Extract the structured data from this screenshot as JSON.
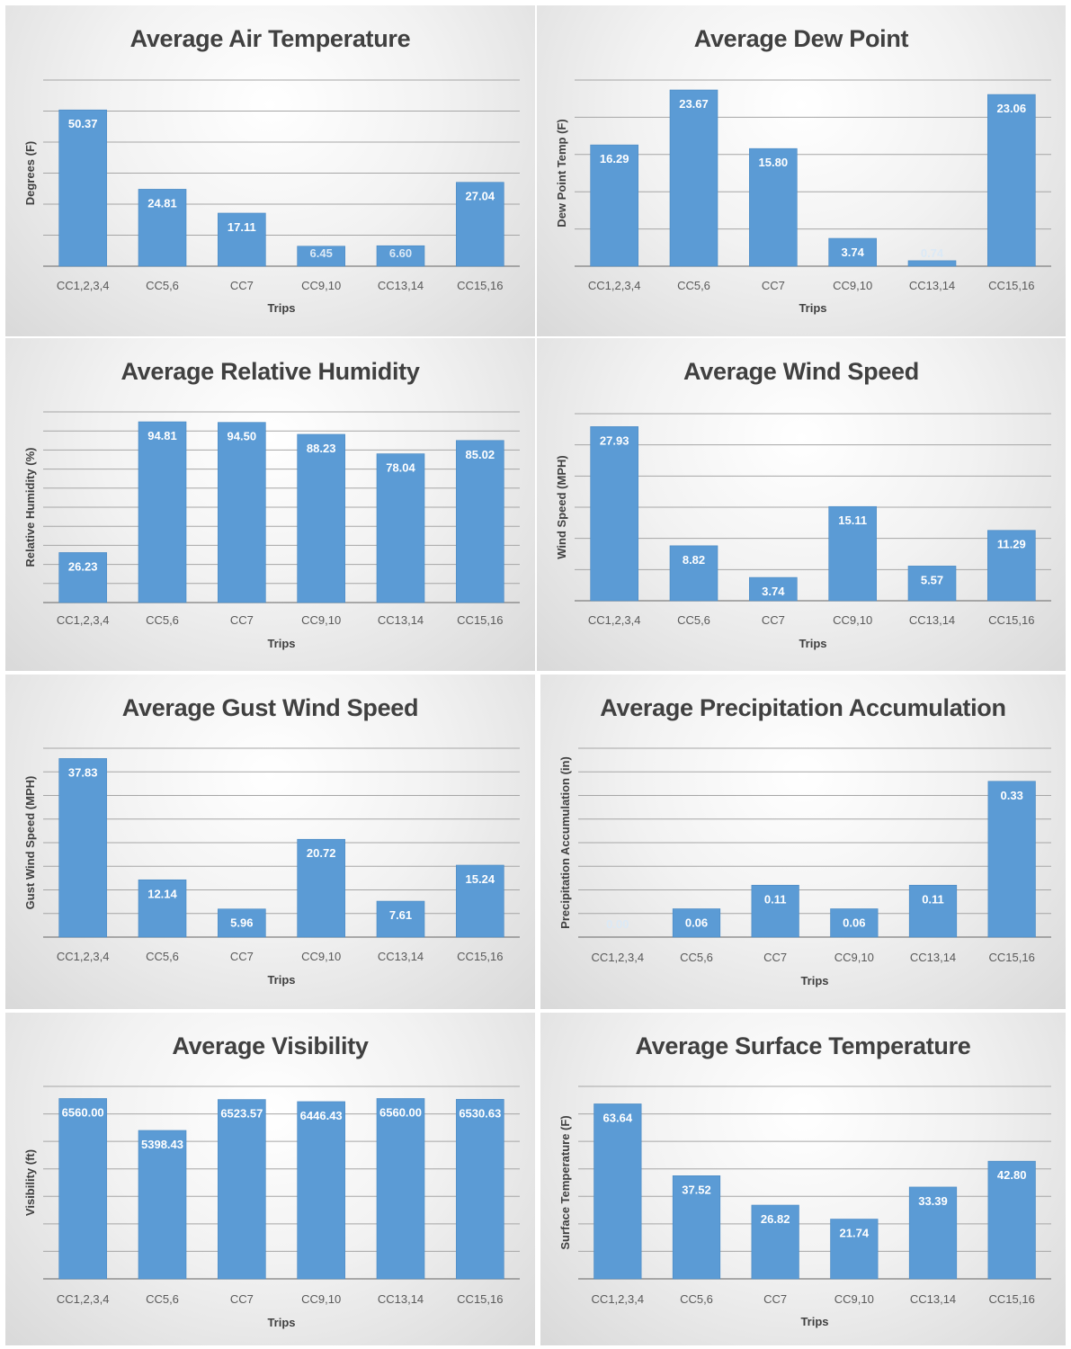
{
  "chart_data": [
    {
      "type": "bar",
      "title": "Average Air Temperature",
      "xlabel": "Trips",
      "ylabel": "Degrees (F)",
      "categories": [
        "CC1,2,3,4",
        "CC5,6",
        "CC7",
        "CC9,10",
        "CC13,14",
        "CC15,16"
      ],
      "values": [
        50.37,
        24.81,
        17.11,
        6.45,
        6.6,
        27.04
      ],
      "data_labels": [
        "50.37",
        "24.81",
        "17.11",
        "6.45",
        "6.60",
        "27.04"
      ],
      "ylim": [
        0,
        60
      ],
      "grid_lines": 6,
      "grid": true
    },
    {
      "type": "bar",
      "title": "Average Dew Point",
      "xlabel": "Trips",
      "ylabel": "Dew Point Temp (F)",
      "categories": [
        "CC1,2,3,4",
        "CC5,6",
        "CC7",
        "CC9,10",
        "CC13,14",
        "CC15,16"
      ],
      "values": [
        16.29,
        23.67,
        15.8,
        3.74,
        0.74,
        23.06
      ],
      "data_labels": [
        "16.29",
        "23.67",
        "15.80",
        "3.74",
        "0.74",
        "23.06"
      ],
      "ylim": [
        0,
        25
      ],
      "grid_lines": 5,
      "grid": true
    },
    {
      "type": "bar",
      "title": "Average Relative Humidity",
      "xlabel": "Trips",
      "ylabel": "Relative Humidity (%)",
      "categories": [
        "CC1,2,3,4",
        "CC5,6",
        "CC7",
        "CC9,10",
        "CC13,14",
        "CC15,16"
      ],
      "values": [
        26.23,
        94.81,
        94.5,
        88.23,
        78.04,
        85.02
      ],
      "data_labels": [
        "26.23",
        "94.81",
        "94.50",
        "88.23",
        "78.04",
        "85.02"
      ],
      "ylim": [
        0,
        100
      ],
      "grid_lines": 10,
      "grid": true
    },
    {
      "type": "bar",
      "title": "Average Wind Speed",
      "xlabel": "Trips",
      "ylabel": "Wind Speed (MPH)",
      "categories": [
        "CC1,2,3,4",
        "CC5,6",
        "CC7",
        "CC9,10",
        "CC13,14",
        "CC15,16"
      ],
      "values": [
        27.93,
        8.82,
        3.74,
        15.11,
        5.57,
        11.29
      ],
      "data_labels": [
        "27.93",
        "8.82",
        "3.74",
        "15.11",
        "5.57",
        "11.29"
      ],
      "ylim": [
        0,
        30
      ],
      "grid_lines": 6,
      "grid": true
    },
    {
      "type": "bar",
      "title": "Average Gust Wind Speed",
      "xlabel": "Trips",
      "ylabel": "Gust Wind Speed (MPH)",
      "categories": [
        "CC1,2,3,4",
        "CC5,6",
        "CC7",
        "CC9,10",
        "CC13,14",
        "CC15,16"
      ],
      "values": [
        37.83,
        12.14,
        5.96,
        20.72,
        7.61,
        15.24
      ],
      "data_labels": [
        "37.83",
        "12.14",
        "5.96",
        "20.72",
        "7.61",
        "15.24"
      ],
      "ylim": [
        0,
        40
      ],
      "grid_lines": 8,
      "grid": true
    },
    {
      "type": "bar",
      "title": "Average Precipitation Accumulation",
      "xlabel": "Trips",
      "ylabel": "Precipitation Accumulation (in)",
      "categories": [
        "CC1,2,3,4",
        "CC5,6",
        "CC7",
        "CC9,10",
        "CC13,14",
        "CC15,16"
      ],
      "values": [
        0.0,
        0.06,
        0.11,
        0.06,
        0.11,
        0.33
      ],
      "data_labels": [
        "0.00",
        "0.06",
        "0.11",
        "0.06",
        "0.11",
        "0.33"
      ],
      "ylim": [
        0,
        0.4
      ],
      "grid_lines": 8,
      "grid": true
    },
    {
      "type": "bar",
      "title": "Average Visibility",
      "xlabel": "Trips",
      "ylabel": "Visibility (ft)",
      "categories": [
        "CC1,2,3,4",
        "CC5,6",
        "CC7",
        "CC9,10",
        "CC13,14",
        "CC15,16"
      ],
      "values": [
        6560.0,
        5398.43,
        6523.57,
        6446.43,
        6560.0,
        6530.63
      ],
      "data_labels": [
        "6560.00",
        "5398.43",
        "6523.57",
        "6446.43",
        "6560.00",
        "6530.63"
      ],
      "ylim": [
        0,
        7000
      ],
      "grid_lines": 7,
      "grid": true
    },
    {
      "type": "bar",
      "title": "Average Surface Temperature",
      "xlabel": "Trips",
      "ylabel": "Surface Temperature (F)",
      "categories": [
        "CC1,2,3,4",
        "CC5,6",
        "CC7",
        "CC9,10",
        "CC13,14",
        "CC15,16"
      ],
      "values": [
        63.64,
        37.52,
        26.82,
        21.74,
        33.39,
        42.8
      ],
      "data_labels": [
        "63.64",
        "37.52",
        "26.82",
        "21.74",
        "33.39",
        "42.80"
      ],
      "ylim": [
        0,
        70
      ],
      "grid_lines": 7,
      "grid": true
    }
  ],
  "colors": {
    "bar": "#5b9bd5",
    "grid": "#a6a6a6",
    "title": "#404040",
    "tick": "#595959"
  }
}
